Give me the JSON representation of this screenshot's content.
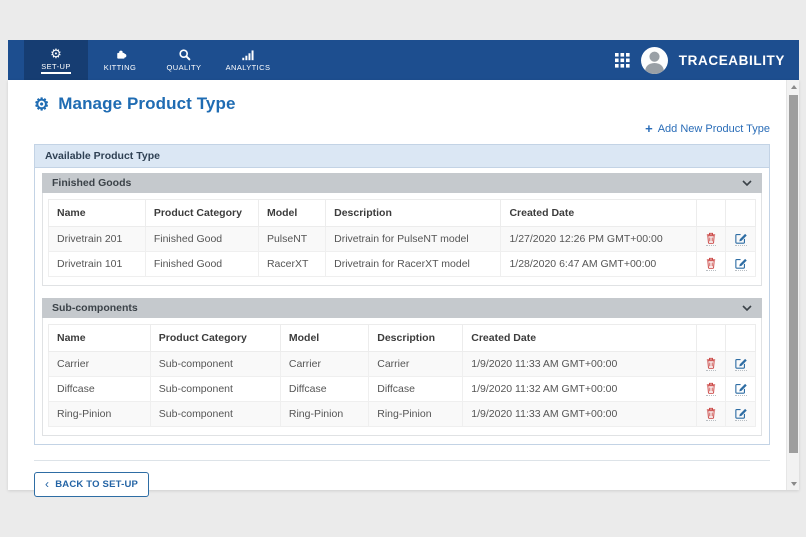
{
  "brand": "TRACEABILITY",
  "nav": {
    "items": [
      {
        "label": "SET-UP",
        "icon": "gear-icon",
        "active": true
      },
      {
        "label": "KITTING",
        "icon": "puzzle-icon",
        "active": false
      },
      {
        "label": "QUALITY",
        "icon": "magnifier-icon",
        "active": false
      },
      {
        "label": "ANALYTICS",
        "icon": "bar-chart-icon",
        "active": false
      }
    ]
  },
  "page": {
    "title": "Manage Product Type",
    "add_new_label": "Add New Product Type",
    "panel_title": "Available Product Type",
    "back_button_label": "BACK TO SET-UP"
  },
  "sections": [
    {
      "title": "Finished Goods",
      "columns": [
        "Name",
        "Product Category",
        "Model",
        "Description",
        "Created Date"
      ],
      "rows": [
        [
          "Drivetrain 201",
          "Finished Good",
          "PulseNT",
          "Drivetrain for PulseNT model",
          "1/27/2020 12:26 PM GMT+00:00"
        ],
        [
          "Drivetrain 101",
          "Finished Good",
          "RacerXT",
          "Drivetrain for RacerXT model",
          "1/28/2020 6:47 AM GMT+00:00"
        ]
      ]
    },
    {
      "title": "Sub-components",
      "columns": [
        "Name",
        "Product Category",
        "Model",
        "Description",
        "Created Date"
      ],
      "rows": [
        [
          "Carrier",
          "Sub-component",
          "Carrier",
          "Carrier",
          "1/9/2020 11:33 AM GMT+00:00"
        ],
        [
          "Diffcase",
          "Sub-component",
          "Diffcase",
          "Diffcase",
          "1/9/2020 11:32 AM GMT+00:00"
        ],
        [
          "Ring-Pinion",
          "Sub-component",
          "Ring-Pinion",
          "Ring-Pinion",
          "1/9/2020 11:33 AM GMT+00:00"
        ]
      ]
    }
  ],
  "row_actions": [
    "delete",
    "edit"
  ],
  "colors": {
    "navbar_blue": "#1d4e8f",
    "nav_active_blue": "#163d72",
    "title_blue": "#1f6cb3",
    "link_blue": "#2a6db8",
    "panel_header_bg": "#dbe7f4",
    "section_header_bg": "#c5c9cd",
    "delete_red": "#c9403e",
    "edit_blue": "#2e6da4"
  }
}
